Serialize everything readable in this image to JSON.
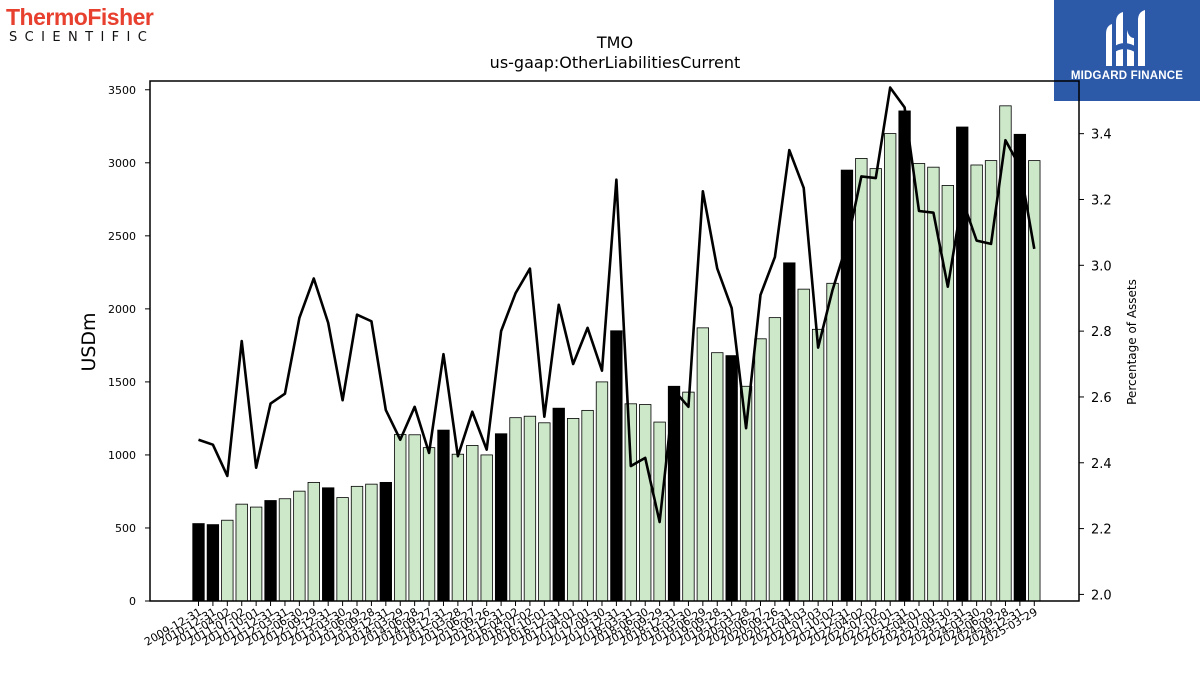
{
  "logos": {
    "left_brand": "ThermoFisher",
    "left_sub": "SCIENTIFIC",
    "right_name": "MIDGARD FINANCE"
  },
  "chart_data": {
    "type": "bar",
    "title": "TMO",
    "subtitle": "us-gaap:OtherLiabilitiesCurrent",
    "ylabel": "USDm",
    "y2label": "Percentage of Assets",
    "ylim": [
      0,
      3560
    ],
    "y2lim": [
      1.98,
      3.56
    ],
    "yticks": [
      0,
      500,
      1000,
      1500,
      2000,
      2500,
      3000,
      3500
    ],
    "y2ticks": [
      "2.0",
      "2.2",
      "2.4",
      "2.6",
      "2.8",
      "3.0",
      "3.2",
      "3.4"
    ],
    "colors": {
      "annual_bar": "#000000",
      "quarter_bar": "#cce8c8",
      "line": "#000000"
    },
    "categories": [
      "2009-12-31",
      "2010-12-31",
      "2011-04-02",
      "2011-07-02",
      "2011-10-01",
      "2011-12-31",
      "2012-03-31",
      "2012-06-30",
      "2012-09-29",
      "2012-12-31",
      "2013-03-30",
      "2013-06-29",
      "2013-09-28",
      "2013-12-31",
      "2014-03-29",
      "2014-06-28",
      "2014-09-27",
      "2014-12-31",
      "2015-03-28",
      "2015-06-27",
      "2015-09-26",
      "2015-12-31",
      "2016-04-02",
      "2016-07-02",
      "2016-10-01",
      "2016-12-31",
      "2017-04-01",
      "2017-07-01",
      "2017-09-30",
      "2017-12-31",
      "2018-03-31",
      "2018-06-30",
      "2018-09-29",
      "2018-12-31",
      "2019-03-30",
      "2019-06-29",
      "2019-09-28",
      "2019-12-31",
      "2020-03-28",
      "2020-06-27",
      "2020-09-26",
      "2020-12-31",
      "2021-04-03",
      "2021-07-03",
      "2021-10-02",
      "2021-12-31",
      "2022-04-02",
      "2022-07-02",
      "2022-10-01",
      "2022-12-31",
      "2023-04-01",
      "2023-07-01",
      "2023-09-30",
      "2023-12-31",
      "2024-03-30",
      "2024-06-29",
      "2024-09-28",
      "2024-12-31",
      "2025-03-29"
    ],
    "series": [
      {
        "values": [
          530,
          523,
          553,
          663,
          643,
          688,
          700,
          752,
          812,
          775,
          708,
          785,
          800,
          812,
          1140,
          1138,
          1050,
          1170,
          1005,
          1065,
          1000,
          1145,
          1255,
          1265,
          1220,
          1320,
          1250,
          1305,
          1500,
          1850,
          1350,
          1345,
          1225,
          1470,
          1430,
          1870,
          1700,
          1680,
          1470,
          1795,
          1940,
          2315,
          2135,
          1860,
          2175,
          2950,
          3030,
          2960,
          3200,
          3355,
          2995,
          2970,
          2845,
          3245,
          2985,
          3015,
          3390,
          3195,
          3015
        ]
      },
      {
        "values": [
          2.47,
          2.455,
          2.36,
          2.77,
          2.385,
          2.58,
          2.61,
          2.84,
          2.96,
          2.825,
          2.59,
          2.85,
          2.83,
          2.56,
          2.47,
          2.57,
          2.43,
          2.73,
          2.42,
          2.555,
          2.44,
          2.8,
          2.915,
          2.99,
          2.54,
          2.88,
          2.7,
          2.81,
          2.68,
          3.26,
          2.39,
          2.415,
          2.22,
          2.62,
          2.57,
          3.225,
          2.99,
          2.87,
          2.505,
          2.91,
          3.025,
          3.35,
          3.235,
          2.75,
          2.925,
          3.065,
          3.27,
          3.265,
          3.54,
          3.48,
          3.165,
          3.16,
          2.935,
          3.2,
          3.075,
          3.065,
          3.38,
          3.3,
          3.05
        ]
      }
    ]
  }
}
